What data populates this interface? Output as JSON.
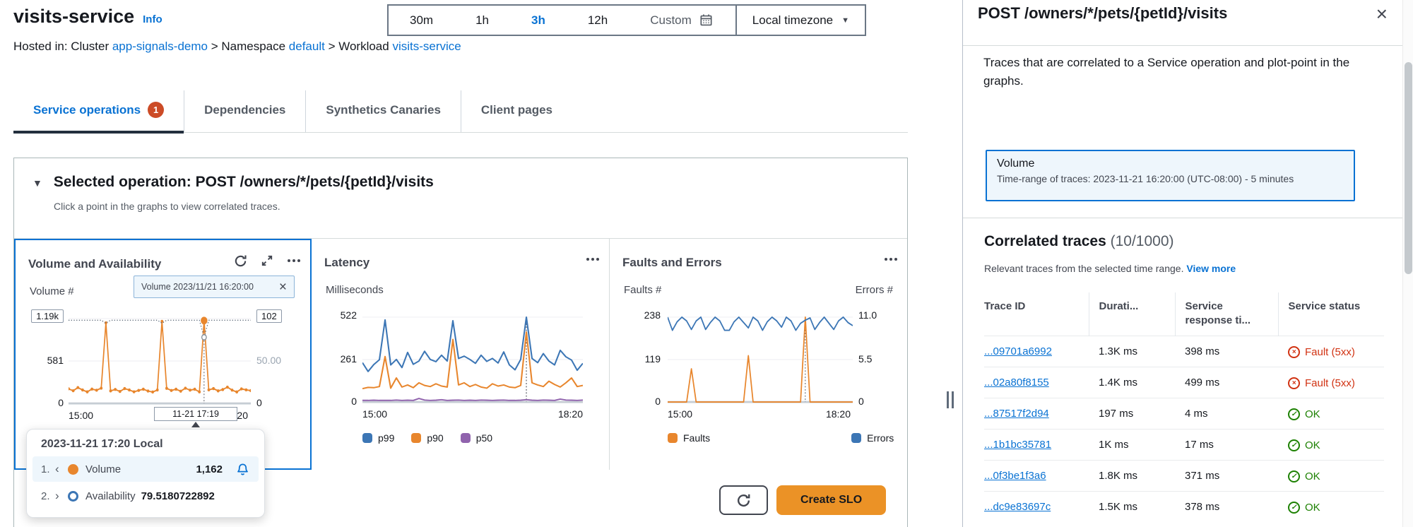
{
  "header": {
    "title": "visits-service",
    "info": "Info"
  },
  "breadcrumb": [
    {
      "t": "Hosted in: Cluster ",
      "link": false
    },
    {
      "t": "app-signals-demo",
      "link": true
    },
    {
      "t": " > Namespace ",
      "link": false
    },
    {
      "t": "default",
      "link": true
    },
    {
      "t": " > Workload ",
      "link": false
    },
    {
      "t": "visits-service",
      "link": true
    }
  ],
  "time_controls": {
    "ranges": [
      "30m",
      "1h",
      "3h",
      "12h",
      "Custom"
    ],
    "selected": "3h",
    "timezone": "Local timezone"
  },
  "tabs": [
    {
      "label": "Service operations",
      "badge": "1"
    },
    {
      "label": "Dependencies"
    },
    {
      "label": "Synthetics Canaries"
    },
    {
      "label": "Client pages"
    }
  ],
  "selected_operation": {
    "title": "Selected operation: POST /owners/*/pets/{petId}/visits",
    "subtitle": "Click a point in the graphs to view correlated traces.",
    "chip": "Volume 2023/11/21 16:20:00",
    "hover_x_label": "11-21 17:19",
    "create_slo": "Create SLO"
  },
  "tooltip": {
    "header": "2023-11-21 17:20 Local",
    "rows": [
      {
        "n": "1.",
        "chev": "‹",
        "label": "Volume",
        "value": "1,162",
        "marker": "filled",
        "color": "#e8862d",
        "bell": true
      },
      {
        "n": "2.",
        "chev": "›",
        "label": "Availability",
        "value": "79.5180722892",
        "marker": "ring",
        "color": "#3c76b5"
      }
    ]
  },
  "chart_data": [
    {
      "type": "line",
      "title": "Volume and Availability",
      "left_axis": {
        "label": "Volume #",
        "ticks": [
          "1.19k",
          "581",
          "0"
        ],
        "max": 1190
      },
      "right_axis": {
        "ticks": [
          "102",
          "50.00",
          "0"
        ],
        "max": 102
      },
      "x_ticks": [
        "15:00",
        "18:20"
      ],
      "selected_index": 29,
      "selected_point": {
        "name": "Volume",
        "value": 1162,
        "availability": 79.5180722892,
        "time": "2023-11-21 17:20"
      },
      "series": [
        {
          "name": "Volume",
          "color": "#e8862d",
          "width": 2,
          "dots": true,
          "values": [
            205,
            178,
            222,
            188,
            162,
            201,
            185,
            214,
            1130,
            176,
            196,
            168,
            208,
            188,
            163,
            182,
            199,
            174,
            160,
            188,
            1150,
            212,
            181,
            199,
            172,
            214,
            186,
            199,
            162,
            1162,
            190,
            208,
            176,
            194,
            228,
            186,
            161,
            204,
            190,
            179
          ]
        },
        {
          "name": "Availability",
          "color": "#5f6b7a",
          "axis": "right",
          "dashed": true,
          "width": 1.4,
          "values": [
            100,
            100,
            100,
            100,
            100,
            100,
            100,
            100,
            96.5,
            100,
            100,
            100,
            100,
            100,
            100,
            100,
            100,
            100,
            100,
            100,
            96.5,
            100,
            100,
            100,
            100,
            100,
            100,
            100,
            100,
            79.5,
            100,
            100,
            100,
            100,
            100,
            100,
            100,
            100,
            100,
            100
          ]
        }
      ],
      "markers": [
        {
          "series": 0,
          "index": 29,
          "type": "big"
        },
        {
          "series": 1,
          "index": 29,
          "type": "ring"
        }
      ]
    },
    {
      "type": "line",
      "title": "Latency",
      "left_axis": {
        "label": "Milliseconds",
        "ticks": [
          "522",
          "261",
          "0"
        ],
        "max": 522
      },
      "x_ticks": [
        "15:00",
        "18:20"
      ],
      "selected_index": 29,
      "legend": [
        {
          "label": "p99",
          "color": "#3c76b5"
        },
        {
          "label": "p90",
          "color": "#e8862d"
        },
        {
          "label": "p50",
          "color": "#9063ad"
        }
      ],
      "series": [
        {
          "name": "p99",
          "color": "#3c76b5",
          "width": 2,
          "values": [
            242,
            188,
            230,
            260,
            505,
            228,
            262,
            212,
            305,
            232,
            252,
            312,
            262,
            248,
            288,
            252,
            500,
            268,
            282,
            262,
            238,
            288,
            250,
            268,
            240,
            308,
            228,
            198,
            262,
            522,
            268,
            242,
            298,
            252,
            228,
            318,
            278,
            258,
            195,
            238
          ]
        },
        {
          "name": "p90",
          "color": "#e8862d",
          "width": 2,
          "values": [
            82,
            90,
            88,
            95,
            280,
            85,
            148,
            92,
            105,
            88,
            118,
            102,
            95,
            112,
            98,
            92,
            385,
            105,
            118,
            95,
            108,
            92,
            85,
            112,
            98,
            105,
            92,
            88,
            102,
            430,
            118,
            105,
            95,
            128,
            108,
            92,
            118,
            148,
            95,
            102
          ]
        },
        {
          "name": "p50",
          "color": "#9063ad",
          "width": 2,
          "values": [
            10,
            10,
            11,
            10,
            10,
            10,
            12,
            10,
            11,
            10,
            22,
            12,
            10,
            11,
            14,
            10,
            11,
            12,
            10,
            11,
            10,
            12,
            11,
            10,
            11,
            12,
            10,
            10,
            11,
            14,
            11,
            10,
            12,
            11,
            10,
            18,
            12,
            11,
            10,
            12
          ]
        }
      ]
    },
    {
      "type": "line",
      "title": "Faults and Errors",
      "left_axis": {
        "label": "Faults #",
        "ticks": [
          "238",
          "119",
          "0"
        ],
        "max": 238
      },
      "right_axis": {
        "label": "Errors #",
        "ticks": [
          "11.0",
          "5.5",
          "0"
        ],
        "max": 11
      },
      "x_ticks": [
        "15:00",
        "18:20"
      ],
      "selected_index": 29,
      "legend": [
        {
          "label": "Faults",
          "color": "#e8862d"
        },
        {
          "label": "Errors",
          "color": "#3c76b5"
        }
      ],
      "series": [
        {
          "name": "Faults",
          "color": "#e8862d",
          "width": 2,
          "values": [
            0,
            0,
            0,
            0,
            0,
            93,
            0,
            0,
            0,
            0,
            0,
            0,
            0,
            0,
            0,
            0,
            0,
            130,
            0,
            0,
            0,
            0,
            0,
            0,
            0,
            0,
            0,
            0,
            0,
            238,
            0,
            0,
            0,
            0,
            0,
            0,
            0,
            0,
            0,
            0
          ]
        },
        {
          "name": "Errors",
          "color": "#3c76b5",
          "width": 2,
          "axis": "right",
          "values": [
            11,
            9.3,
            10.4,
            11,
            10.5,
            9.4,
            10.5,
            11,
            9.4,
            10.3,
            11,
            10.5,
            9.3,
            9.3,
            10.4,
            11,
            10.3,
            9.6,
            11,
            10.5,
            9.3,
            10.4,
            11,
            10.5,
            9.7,
            11,
            10.5,
            9.3,
            10.2,
            10.6,
            10.9,
            9.4,
            10.3,
            11,
            10.2,
            9.4,
            10.5,
            11,
            10.3,
            9.9
          ]
        }
      ]
    }
  ],
  "panel": {
    "title": "POST /owners/*/pets/{petId}/visits",
    "description": "Traces that are correlated to a Service operation and plot-point in the graphs.",
    "volume_box": {
      "title": "Volume",
      "subtitle": "Time-range of traces: 2023-11-21 16:20:00 (UTC-08:00) - 5 minutes"
    },
    "correlated": {
      "heading": "Correlated traces",
      "count": "(10/1000)",
      "subtitle": "Relevant traces from the selected time range.",
      "link": "View more"
    },
    "table": {
      "columns": [
        "Trace ID",
        "Durati...",
        "Service response ti...",
        "Service status"
      ],
      "rows": [
        {
          "id": "...09701a6992",
          "duration": "1.3K ms",
          "response": "398 ms",
          "status": "Fault (5xx)",
          "status_type": "fault"
        },
        {
          "id": "...02a80f8155",
          "duration": "1.4K ms",
          "response": "499 ms",
          "status": "Fault (5xx)",
          "status_type": "fault"
        },
        {
          "id": "...87517f2d94",
          "duration": "197 ms",
          "response": "4 ms",
          "status": "OK",
          "status_type": "ok"
        },
        {
          "id": "...1b1bc35781",
          "duration": "1K ms",
          "response": "17 ms",
          "status": "OK",
          "status_type": "ok"
        },
        {
          "id": "...0f3be1f3a6",
          "duration": "1.8K ms",
          "response": "371 ms",
          "status": "OK",
          "status_type": "ok"
        },
        {
          "id": "...dc9e83697c",
          "duration": "1.5K ms",
          "response": "378 ms",
          "status": "OK",
          "status_type": "ok"
        }
      ],
      "status_colors": {
        "fault": "#d13212",
        "ok": "#1d8102"
      }
    }
  }
}
